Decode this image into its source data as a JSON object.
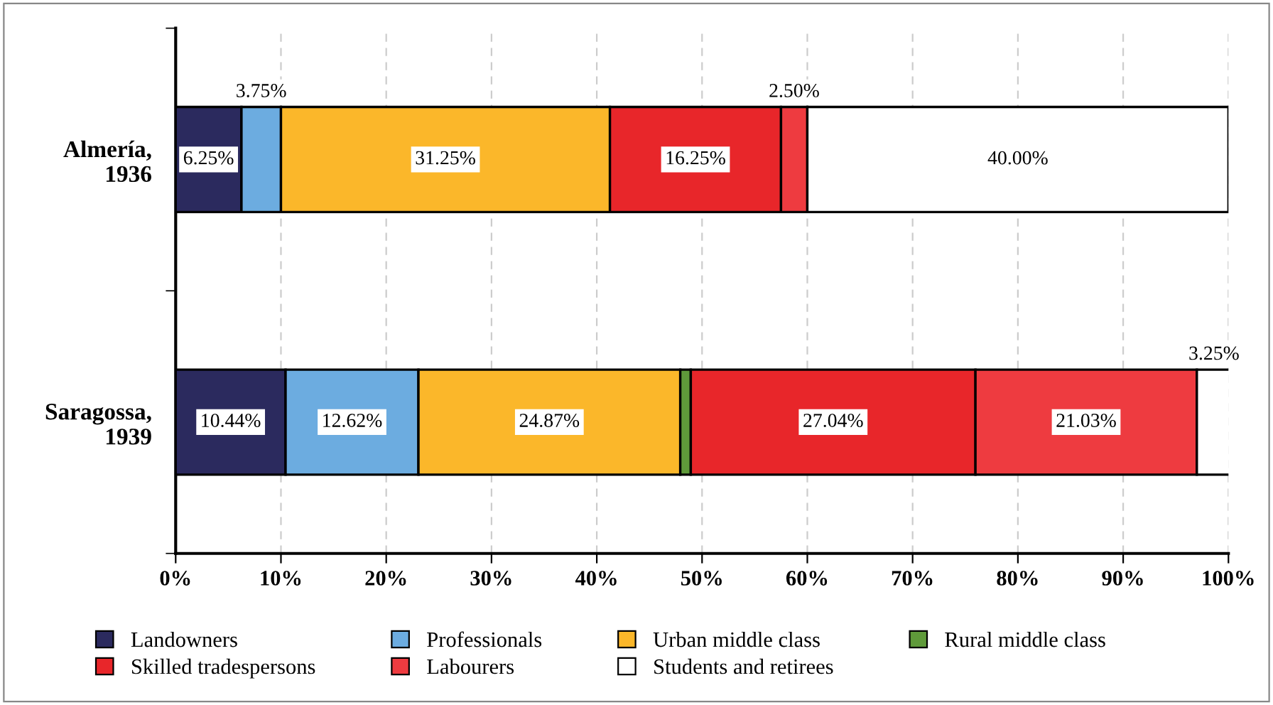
{
  "chart_data": {
    "type": "bar",
    "orientation": "horizontal",
    "stacked": true,
    "categories": [
      "Almería,\n1936",
      "Saragossa,\n1939"
    ],
    "series": [
      {
        "name": "Landowners",
        "color": "#2b2a5e",
        "values": [
          6.25,
          10.44
        ],
        "value_labels": [
          "6.25%",
          "10.44%"
        ]
      },
      {
        "name": "Professionals",
        "color": "#6cace0",
        "values": [
          3.75,
          12.62
        ],
        "value_labels": [
          "3.75%",
          "12.62%"
        ]
      },
      {
        "name": "Urban middle class",
        "color": "#fbb72a",
        "values": [
          31.25,
          24.87
        ],
        "value_labels": [
          "31.25%",
          "24.87%"
        ]
      },
      {
        "name": "Rural middle class",
        "color": "#5f9a3a",
        "values": [
          0,
          1
        ],
        "value_labels": [
          null,
          null
        ]
      },
      {
        "name": "Skilled tradespersons",
        "color": "#e8262a",
        "values": [
          16.25,
          27.04
        ],
        "value_labels": [
          "16.25%",
          "27.04%"
        ]
      },
      {
        "name": "Labourers",
        "color": "#ee3b40",
        "values": [
          2.5,
          21.03
        ],
        "value_labels": [
          "2.50%",
          "21.03%"
        ]
      },
      {
        "name": "Students and retirees",
        "color": "#ffffff",
        "values": [
          40.0,
          3.25
        ],
        "value_labels": [
          "40.00%",
          "3.25%"
        ]
      }
    ],
    "xlim": [
      0,
      100
    ],
    "xticks": [
      {
        "value": 0,
        "label": "0%"
      },
      {
        "value": 10,
        "label": "10%"
      },
      {
        "value": 20,
        "label": "20%"
      },
      {
        "value": 30,
        "label": "30%"
      },
      {
        "value": 40,
        "label": "40%"
      },
      {
        "value": 50,
        "label": "50%"
      },
      {
        "value": 60,
        "label": "60%"
      },
      {
        "value": 70,
        "label": "70%"
      },
      {
        "value": 80,
        "label": "80%"
      },
      {
        "value": 90,
        "label": "90%"
      },
      {
        "value": 100,
        "label": "100%"
      }
    ],
    "grid": "x",
    "legend": "bottom"
  }
}
